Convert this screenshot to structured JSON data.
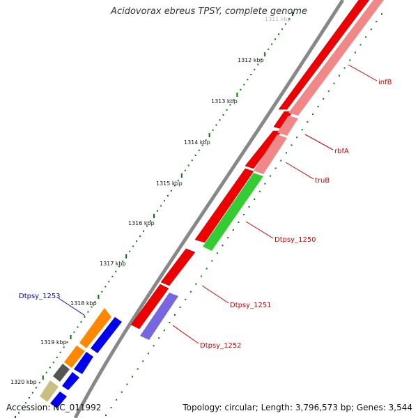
{
  "title": "Acidovorax ebreus TPSY, complete genome",
  "footer": {
    "accession": "Accession: NC_011992",
    "summary": "Topology: circular; Length: 3,796,573 bp; Genes: 3,544"
  },
  "ticks": [
    {
      "label": "1311 kbp"
    },
    {
      "label": "1312 kbp"
    },
    {
      "label": "1313 kbp"
    },
    {
      "label": "1314 kbp"
    },
    {
      "label": "1315 kbp"
    },
    {
      "label": "1316 kbp"
    },
    {
      "label": "1317 kbp"
    },
    {
      "label": "1318 kbp"
    },
    {
      "label": "1319 kbp"
    },
    {
      "label": "1320 kbp"
    }
  ],
  "gene_labels": [
    {
      "name": "infB",
      "color": "#cc0000"
    },
    {
      "name": "rbfA",
      "color": "#cc0000"
    },
    {
      "name": "truB",
      "color": "#cc0000"
    },
    {
      "name": "Dtpsy_1250",
      "color": "#cc0000"
    },
    {
      "name": "Dtpsy_1251",
      "color": "#cc0000"
    },
    {
      "name": "Dtpsy_1252",
      "color": "#cc0000"
    },
    {
      "name": "Dtpsy_1253",
      "color": "#0000cc"
    }
  ],
  "colors": {
    "backbone": "#888888",
    "cds_red": "#ee0000",
    "cds_pink": "#f08888",
    "cds_green": "#33cc33",
    "cds_purple": "#7766dd",
    "cds_orange": "#ff8800",
    "cds_blue": "#0000ee",
    "cds_gray": "#555555",
    "cds_olive": "#c8c080",
    "tick_green": "#007700"
  }
}
